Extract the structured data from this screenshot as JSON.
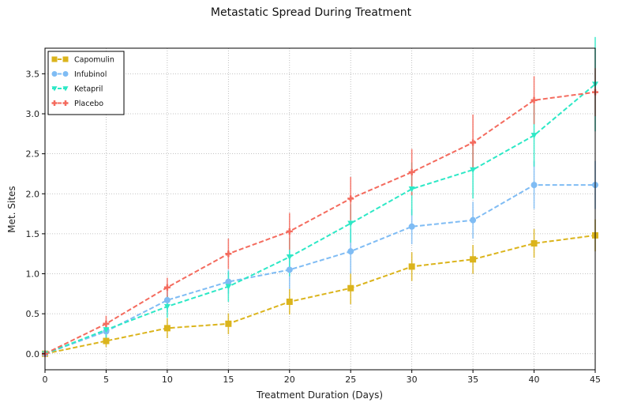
{
  "chart_data": {
    "type": "line",
    "title": "Metastatic Spread During Treatment",
    "xlabel": "Treatment Duration (Days)",
    "ylabel": "Met. Sites",
    "xlim": [
      0,
      45
    ],
    "ylim": [
      -0.2,
      3.82
    ],
    "xticks": [
      0,
      5,
      10,
      15,
      20,
      25,
      30,
      35,
      40,
      45
    ],
    "yticks": [
      0.0,
      0.5,
      1.0,
      1.5,
      2.0,
      2.5,
      3.0,
      3.5
    ],
    "grid": true,
    "legend_position": "top-left",
    "x": [
      0,
      5,
      10,
      15,
      20,
      25,
      30,
      35,
      40,
      45
    ],
    "series": [
      {
        "name": "Capomulin",
        "color": "#dbb41c",
        "marker": "square",
        "values": [
          0.0,
          0.16,
          0.32,
          0.375,
          0.65,
          0.82,
          1.09,
          1.18,
          1.38,
          1.48
        ],
        "errors": [
          0.0,
          0.075,
          0.125,
          0.13,
          0.16,
          0.2,
          0.18,
          0.18,
          0.18,
          0.2
        ]
      },
      {
        "name": "Infubinol",
        "color": "#7fbcf4",
        "marker": "circle",
        "values": [
          0.0,
          0.28,
          0.67,
          0.9,
          1.05,
          1.28,
          1.59,
          1.67,
          2.11,
          2.11
        ],
        "errors": [
          0.0,
          0.09,
          0.15,
          0.15,
          0.24,
          0.28,
          0.22,
          0.23,
          0.3,
          0.3
        ]
      },
      {
        "name": "Ketapril",
        "color": "#2de8c6",
        "marker": "triangle-down",
        "values": [
          0.0,
          0.3,
          0.59,
          0.84,
          1.21,
          1.63,
          2.06,
          2.3,
          2.73,
          3.37
        ],
        "errors": [
          0.0,
          0.1,
          0.14,
          0.19,
          0.24,
          0.24,
          0.33,
          0.36,
          0.39,
          0.59
        ]
      },
      {
        "name": "Placebo",
        "color": "#f46b5e",
        "marker": "plus",
        "values": [
          0.0,
          0.375,
          0.83,
          1.25,
          1.53,
          1.94,
          2.27,
          2.64,
          3.17,
          3.27
        ],
        "errors": [
          0.0,
          0.1,
          0.12,
          0.19,
          0.23,
          0.27,
          0.29,
          0.35,
          0.3,
          0.3
        ]
      }
    ]
  }
}
